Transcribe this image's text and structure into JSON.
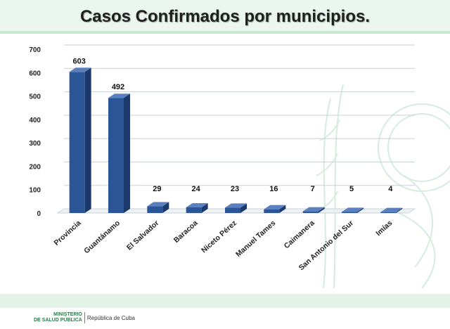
{
  "slide": {
    "title": "Casos Confirmados por municipios.",
    "footer": {
      "ministry_line1": "MINISTERIO",
      "ministry_line2": "DE SALUD PÚBLICA",
      "republic": "República de Cuba"
    }
  },
  "colors": {
    "bar_front": "#2c5597",
    "bar_side": "#1b3a6b",
    "bar_top": "#5b80c0",
    "grid": "#c8d0d4",
    "background_green": "#d6eddc"
  },
  "chart_data": {
    "type": "bar",
    "title": "Casos Confirmados por municipios.",
    "categories": [
      "Provincia",
      "Guantánamo",
      "El Salvador",
      "Baracoa",
      "Niceto Pérez",
      "Manuel Tames",
      "Caimanera",
      "San Antonio del Sur",
      "Imías"
    ],
    "values": [
      603,
      492,
      29,
      24,
      23,
      16,
      7,
      5,
      4
    ],
    "data_labels": [
      "603",
      "492",
      "29",
      "24",
      "23",
      "16",
      "7",
      "5",
      "4"
    ],
    "ylim": [
      0,
      700
    ],
    "yticks": [
      0,
      100,
      200,
      300,
      400,
      500,
      600,
      700
    ],
    "grid": true,
    "legend": "none",
    "three_d": true
  }
}
